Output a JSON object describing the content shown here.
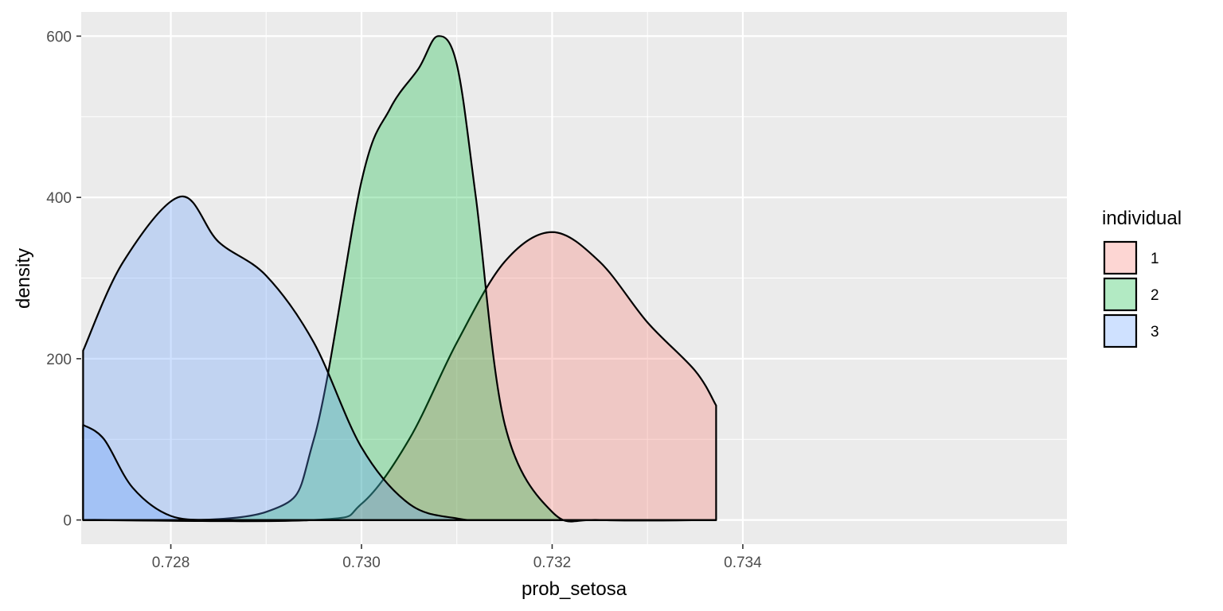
{
  "chart_data": {
    "type": "area",
    "subtype": "density",
    "xlabel": "prob_setosa",
    "ylabel": "density",
    "xlim": [
      0.72706,
      0.7374
    ],
    "ylim": [
      -30,
      630
    ],
    "x_ticks": [
      0.728,
      0.73,
      0.732,
      0.734
    ],
    "x_tick_labels": [
      "0.728",
      "0.730",
      "0.732",
      "0.734"
    ],
    "y_ticks": [
      0,
      200,
      400,
      600
    ],
    "y_tick_labels": [
      "0",
      "200",
      "400",
      "600"
    ],
    "grid": true,
    "legend": {
      "title": "individual",
      "position": "right"
    },
    "series": [
      {
        "name": "1",
        "color": "#F8766D",
        "x": [
          0.72708,
          0.7295,
          0.73,
          0.7305,
          0.731,
          0.7315,
          0.732,
          0.7325,
          0.733,
          0.7335,
          0.73372
        ],
        "values": [
          0,
          0,
          20,
          100,
          220,
          320,
          357,
          320,
          245,
          185,
          142
        ]
      },
      {
        "name": "2",
        "color": "#00BA38",
        "x": [
          0.72708,
          0.729,
          0.7295,
          0.73,
          0.7303,
          0.7306,
          0.7308,
          0.731,
          0.7312,
          0.7315,
          0.732,
          0.7325,
          0.73372
        ],
        "values": [
          0,
          10,
          100,
          420,
          510,
          560,
          600,
          565,
          400,
          120,
          10,
          0,
          0
        ]
      },
      {
        "name": "3",
        "color": "#619CFF",
        "x": [
          0.72708,
          0.7275,
          0.7281,
          0.7285,
          0.729,
          0.7295,
          0.73,
          0.7305,
          0.731,
          0.7315,
          0.73372
        ],
        "values": [
          210,
          320,
          401,
          345,
          303,
          220,
          90,
          20,
          2,
          0,
          0
        ]
      },
      {
        "name": "3",
        "color": "#619CFF",
        "x": [
          0.72708,
          0.7273,
          0.7276,
          0.728,
          0.7285,
          0.729,
          0.73372
        ],
        "values": [
          118,
          100,
          40,
          5,
          0,
          0,
          0
        ]
      }
    ]
  }
}
